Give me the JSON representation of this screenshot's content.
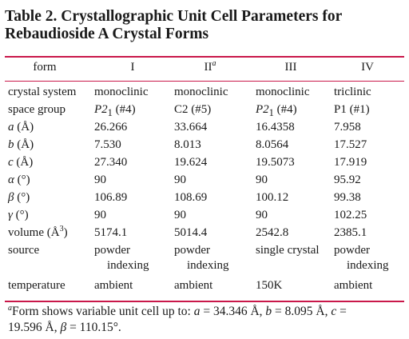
{
  "caption": {
    "line1": "Table 2. Crystallographic Unit Cell Parameters for",
    "line2": "Rebaudioside A Crystal Forms"
  },
  "header": {
    "col0": "form",
    "col1": "I",
    "col2": "II",
    "col2_mark": "a",
    "col3": "III",
    "col4": "IV"
  },
  "rows": {
    "crystal_system": {
      "label": "crystal system",
      "v1": "monoclinic",
      "v2": "monoclinic",
      "v3": "monoclinic",
      "v4": "triclinic"
    },
    "space_group": {
      "label": "space group",
      "v1_a": "P2",
      "v1_sub": "1",
      "v1_b": " (#4)",
      "v2": "C2 (#5)",
      "v3_a": "P2",
      "v3_sub": "1",
      "v3_b": " (#4)",
      "v4": "P1 (#1)"
    },
    "a": {
      "label_sym": "a",
      "label_unit": " (Å)",
      "v1": "26.266",
      "v2": "33.664",
      "v3": "16.4358",
      "v4": "7.958"
    },
    "b": {
      "label_sym": "b",
      "label_unit": " (Å)",
      "v1": "7.530",
      "v2": "8.013",
      "v3": "8.0564",
      "v4": "17.527"
    },
    "c": {
      "label_sym": "c",
      "label_unit": " (Å)",
      "v1": "27.340",
      "v2": "19.624",
      "v3": "19.5073",
      "v4": "17.919"
    },
    "alpha": {
      "label_sym": "α",
      "label_unit": " (°)",
      "v1": "90",
      "v2": "90",
      "v3": "90",
      "v4": "95.92"
    },
    "beta": {
      "label_sym": "β",
      "label_unit": " (°)",
      "v1": "106.89",
      "v2": "108.69",
      "v3": "100.12",
      "v4": "99.38"
    },
    "gamma": {
      "label_sym": "γ",
      "label_unit": " (°)",
      "v1": "90",
      "v2": "90",
      "v3": "90",
      "v4": "102.25"
    },
    "volume": {
      "label_a": "volume (Å",
      "label_sup": "3",
      "label_b": ")",
      "v1": "5174.1",
      "v2": "5014.4",
      "v3": "2542.8",
      "v4": "2385.1"
    },
    "source": {
      "label": "source",
      "v1_l1": "powder",
      "v1_l2": "indexing",
      "v2_l1": "powder",
      "v2_l2": "indexing",
      "v3": "single crystal",
      "v4_l1": "powder",
      "v4_l2": "indexing"
    },
    "temperature": {
      "label": "temperature",
      "v1": "ambient",
      "v2": "ambient",
      "v3": "150K",
      "v4": "ambient"
    }
  },
  "footnote": {
    "mark": "a",
    "text1": "Form shows variable unit cell up to: ",
    "a_sym": "a",
    "a_val": " = 34.346 Å, ",
    "b_sym": "b",
    "b_val": " = 8.095 Å, ",
    "c_sym": "c",
    "c_val": " =",
    "line2_val": "19.596 Å, ",
    "beta_sym": "β",
    "beta_val": " = 110.15°."
  }
}
